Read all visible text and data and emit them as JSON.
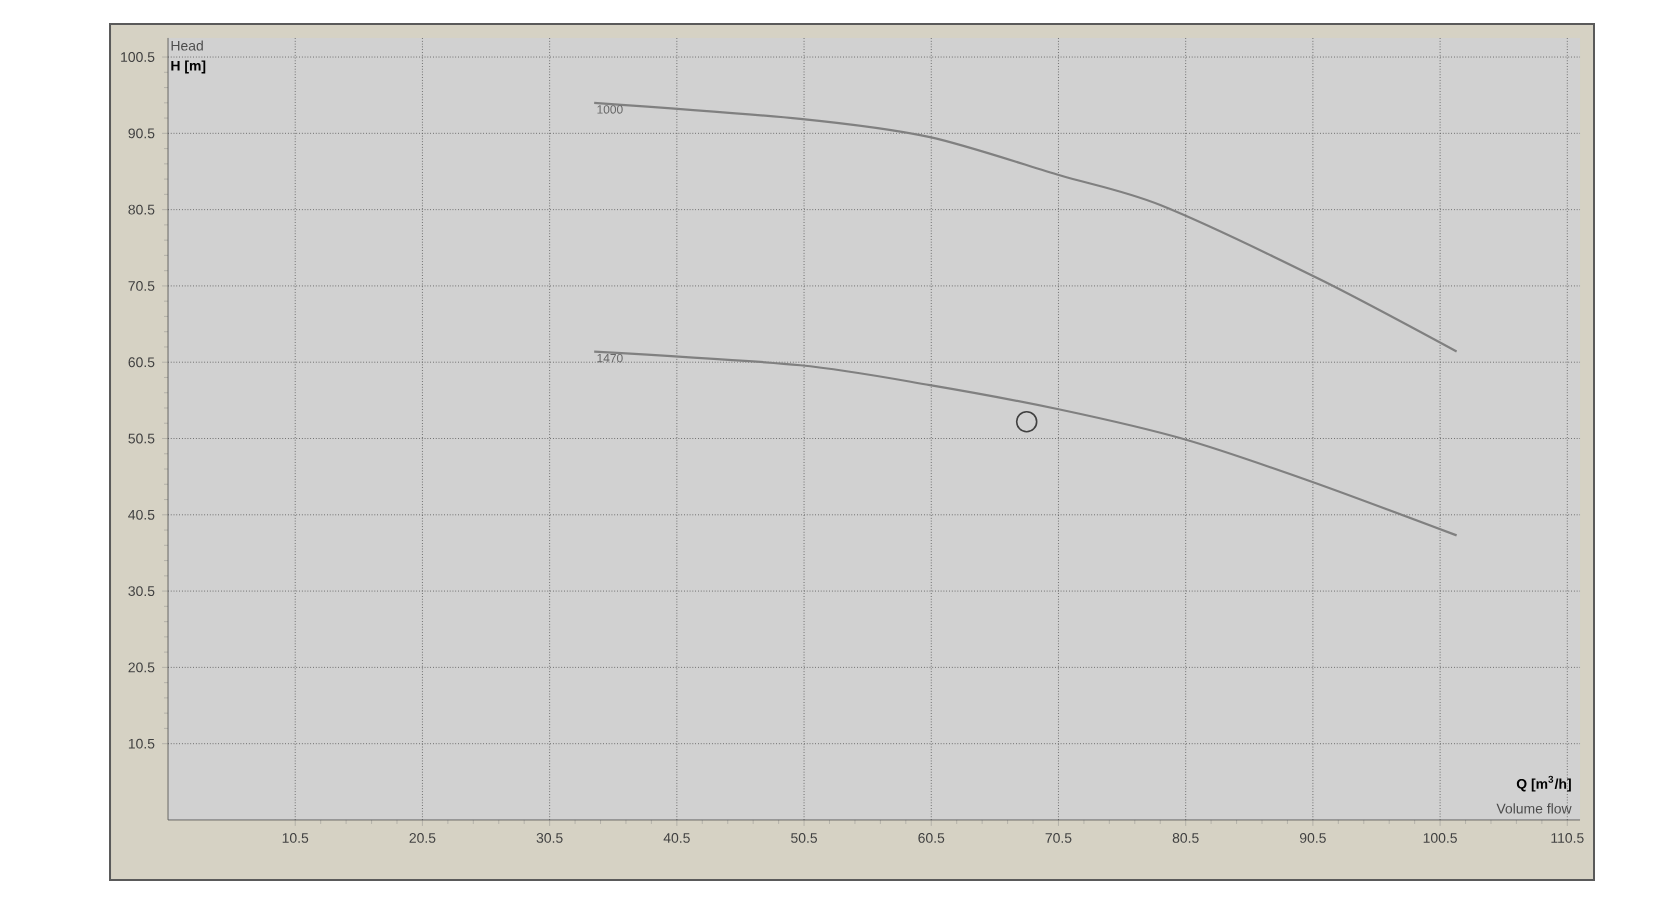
{
  "chart_data": {
    "type": "line",
    "xlabel": "Q [m$^{3}$/h]",
    "ylabel": "H [m]",
    "annotations": [
      "Head",
      "Volume flow"
    ],
    "xlim": [
      0.5,
      111.5
    ],
    "ylim": [
      0.5,
      103
    ],
    "xticks": [
      10.5,
      20.5,
      30.5,
      40.5,
      50.5,
      60.5,
      70.5,
      80.5,
      90.5,
      100.5,
      110.5
    ],
    "yticks": [
      10.5,
      20.5,
      30.5,
      40.5,
      50.5,
      60.5,
      70.5,
      80.5,
      90.5,
      100.5
    ],
    "grid": true,
    "line_style": "solid",
    "marker": "none",
    "series": [
      {
        "name": "1000",
        "color": "#808080",
        "x": [
          34,
          50.2,
          60.4,
          70.6,
          78.5,
          91,
          101.8
        ],
        "values": [
          94.5,
          92.4,
          90,
          85,
          81.1,
          71.4,
          61.9
        ]
      },
      {
        "name": "1470",
        "color": "#808080",
        "x": [
          34,
          50.2,
          60.4,
          70.6,
          80.4,
          90.3,
          101.8
        ],
        "values": [
          61.9,
          60.1,
          57.5,
          54.3,
          50.4,
          44.9,
          37.8
        ]
      },
      {
        "type": "scatter",
        "marker": "circle",
        "color": "#404040",
        "x": [
          68
        ],
        "values": [
          52.7
        ]
      }
    ]
  }
}
